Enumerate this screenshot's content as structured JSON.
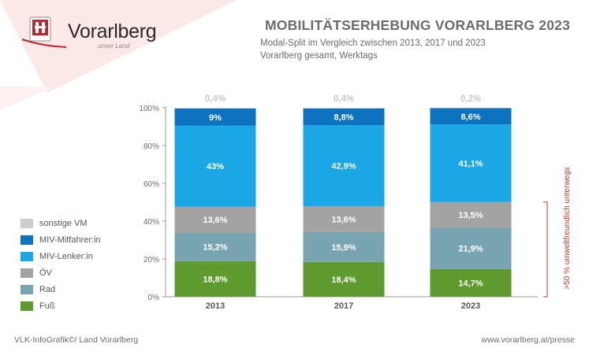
{
  "logo": {
    "name": "Vorarlberg",
    "tagline": "unser Land"
  },
  "header": {
    "title": "MOBILITÄTSERHEBUNG VORARLBERG 2023",
    "subtitle_line1": "Modal-Split im Vergleich zwischen 2013, 2017 und 2023",
    "subtitle_line2": "Vorarlberg gesamt, Werktags"
  },
  "footer": {
    "left": "VLK-InfoGrafik©/ Land Vorarlberg",
    "right": "www.vorarlberg.at/presse"
  },
  "chart_data": {
    "type": "bar",
    "stacked": true,
    "categories": [
      "2013",
      "2017",
      "2023"
    ],
    "ylim": [
      0,
      100
    ],
    "ytick_labels": [
      "0%",
      "20%",
      "40%",
      "60%",
      "80%",
      "100%"
    ],
    "series": [
      {
        "name": "Fuß",
        "color": "#5e9a2e",
        "values": [
          18.8,
          18.4,
          14.7
        ],
        "labels": [
          "18,8%",
          "18,4%",
          "14,7%"
        ]
      },
      {
        "name": "Rad",
        "color": "#78a4b2",
        "values": [
          15.2,
          15.9,
          21.9
        ],
        "labels": [
          "15,2%",
          "15,9%",
          "21,9%"
        ]
      },
      {
        "name": "ÖV",
        "color": "#a3a3a3",
        "values": [
          13.6,
          13.6,
          13.5
        ],
        "labels": [
          "13,6%",
          "13,6%",
          "13,5%"
        ]
      },
      {
        "name": "MIV-Lenker:in",
        "color": "#1ba7e6",
        "values": [
          43,
          42.9,
          41.1
        ],
        "labels": [
          "43%",
          "42,9%",
          "41,1%"
        ]
      },
      {
        "name": "MIV-Mitfahrer:in",
        "color": "#0d72c0",
        "values": [
          9,
          8.8,
          8.6
        ],
        "labels": [
          "9%",
          "8,8%",
          "8,6%"
        ]
      },
      {
        "name": "sonstige VM",
        "color": "#cdcdcd",
        "values": [
          0.4,
          0.4,
          0.2
        ],
        "labels": [
          "0,4%",
          "0,4%",
          "0,2%"
        ]
      }
    ],
    "legend_order": [
      "sonstige VM",
      "MIV-Mitfahrer:in",
      "MIV-Lenker:in",
      "ÖV",
      "Rad",
      "Fuß"
    ],
    "annotation": ">50 % umweltfreundlich unterwegs",
    "annotation_color": "#c0392b"
  }
}
